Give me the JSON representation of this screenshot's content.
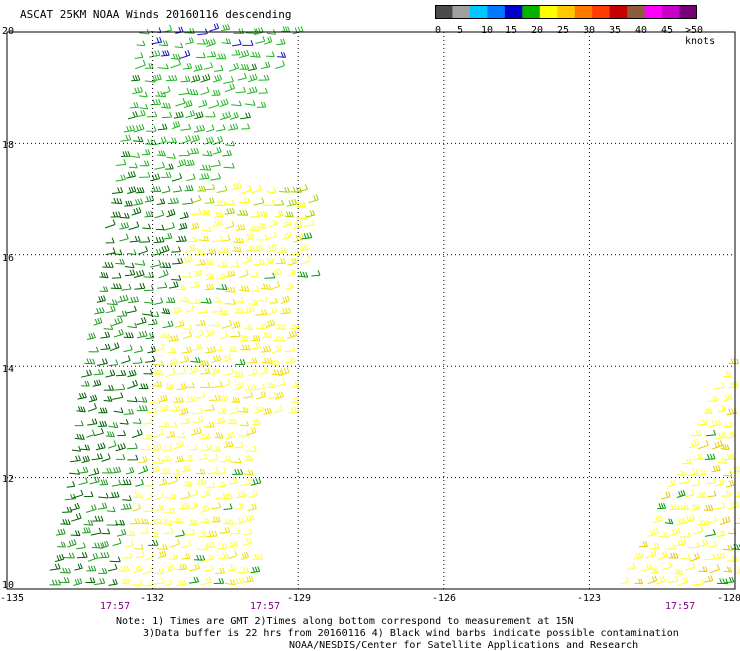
{
  "title": "ASCAT 25KM NOAA Winds 20160116 descending",
  "legend": {
    "colors": [
      "#4a4a4a",
      "#a0a0a0",
      "#00c8ff",
      "#0078ff",
      "#0000c8",
      "#00b400",
      "#ffff00",
      "#ffc800",
      "#ff7800",
      "#ff3c00",
      "#c80000",
      "#8c5a3c",
      "#ff00ff",
      "#c800c8",
      "#780078"
    ],
    "labels": [
      "0",
      "5",
      "10",
      "15",
      "20",
      "25",
      "30",
      "35",
      "40",
      "45",
      ">50 knots"
    ]
  },
  "axes": {
    "x_ticks": [
      "-135",
      "-132",
      "-129",
      "-126",
      "-123",
      "-120"
    ],
    "y_ticks": [
      "20",
      "18",
      "16",
      "14",
      "12",
      "10"
    ],
    "x_range": [
      -135,
      -120
    ],
    "y_range": [
      10,
      20
    ]
  },
  "times": [
    "17:57",
    "17:57",
    "17:57"
  ],
  "notes": [
    "Note: 1) Times are GMT 2)Times along bottom correspond to measurement at 15N",
    "3)Data buffer is 22 hrs from 20160116 4) Black wind barbs indicate possible contamination",
    "NOAA/NESDIS/Center for Satellite Applications and Research"
  ],
  "swaths": {
    "left_speed_range_knots": [
      10,
      25
    ],
    "right_speed_range_knots": [
      15,
      25
    ]
  }
}
